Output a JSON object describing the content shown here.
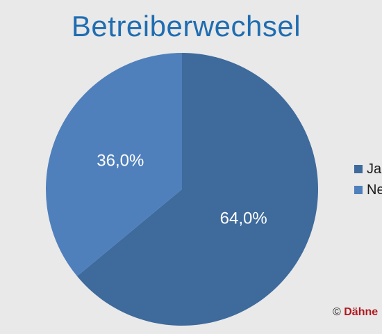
{
  "chart_data": {
    "type": "pie",
    "title": "Betreiberwechsel",
    "slices": [
      {
        "label": "Ja",
        "value": 64.0,
        "display": "64,0%",
        "color": "#3e6a9c"
      },
      {
        "label": "Nein",
        "value": 36.0,
        "display": "36,0%",
        "color": "#4f80bc"
      }
    ],
    "legend_position": "right"
  },
  "legend": {
    "items": [
      {
        "label": "Ja",
        "color": "#3e6a9c"
      },
      {
        "label": "Nein",
        "color": "#4f80bc"
      }
    ]
  },
  "copyright": {
    "symbol": "©",
    "brand": "Dähne"
  }
}
